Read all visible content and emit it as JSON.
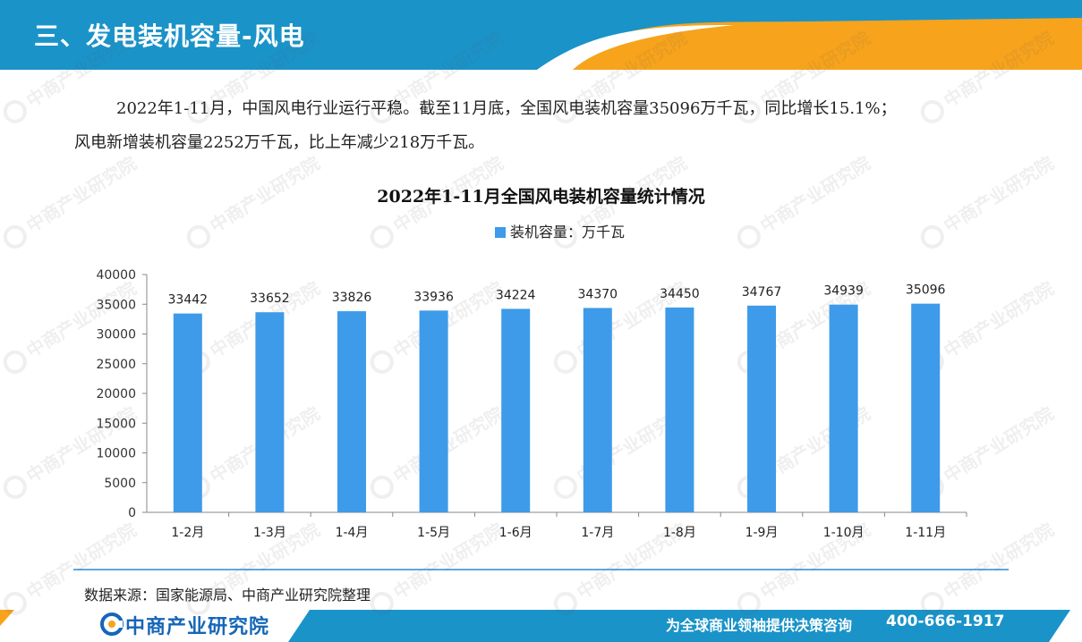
{
  "header": {
    "title": "三、发电装机容量-风电",
    "color_blue": "#1a93c9",
    "color_orange": "#f7a31c"
  },
  "paragraph": {
    "line1": "2022年1-11月，中国风电行业运行平稳。截至11月底，全国风电装机容量35096万千瓦，同比增长15.1%；",
    "line2": "风电新增装机容量2252万千瓦，比上年减少218万千瓦。"
  },
  "chart_data": {
    "type": "bar",
    "title": "2022年1-11月全国风电装机容量统计情况",
    "categories": [
      "1-2月",
      "1-3月",
      "1-4月",
      "1-5月",
      "1-6月",
      "1-7月",
      "1-8月",
      "1-9月",
      "1-10月",
      "1-11月"
    ],
    "series": [
      {
        "name": "装机容量：万千瓦",
        "values": [
          33442,
          33652,
          33826,
          33936,
          34224,
          34370,
          34450,
          34767,
          34939,
          35096
        ],
        "color": "#3d9be9"
      }
    ],
    "ylim": [
      0,
      40000
    ],
    "yticks": [
      "0",
      "5000",
      "10000",
      "15000",
      "20000",
      "25000",
      "30000",
      "35000",
      "40000"
    ],
    "grid": false,
    "legend_position": "top-center",
    "data_labels": true
  },
  "source": {
    "text": "数据来源：国家能源局、中商产业研究院整理"
  },
  "footer": {
    "logo_text": "中商产业研究院",
    "slogan": "为全球商业领袖提供决策咨询",
    "phone": "400-666-1917",
    "color_blue": "#1a93c9",
    "color_orange": "#f7a31c",
    "logo_color": "#1566b8"
  },
  "watermark": {
    "text": "中商产业研究院"
  },
  "icons": {
    "watermark_logo": "watermark-logo-icon",
    "footer_logo": "footer-logo-icon"
  }
}
